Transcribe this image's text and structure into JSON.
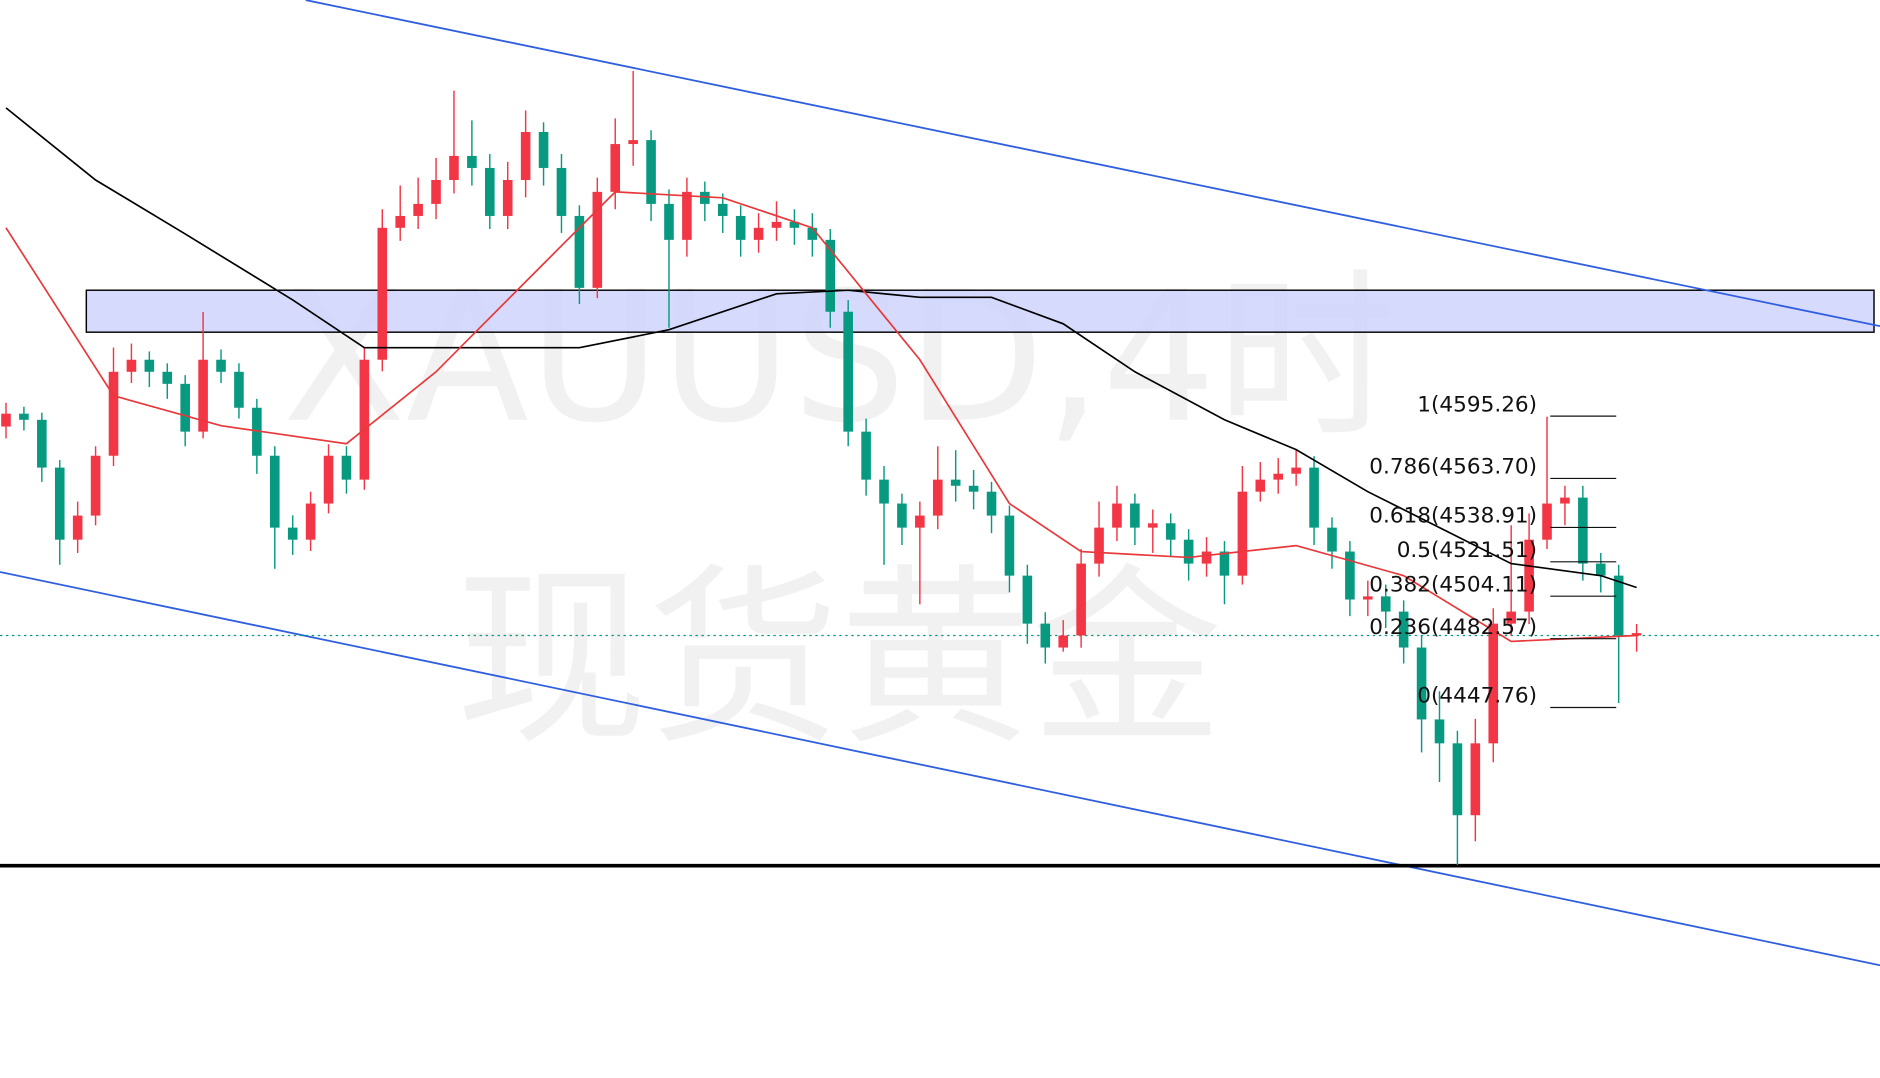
{
  "chart_data": {
    "type": "candlestick",
    "watermark": "XAUUSD,4时",
    "watermark_sub": "现货黄金",
    "ylim": [
      4260.2,
      4805.9
    ],
    "candles": {
      "open": [
        4590.0,
        4596.5,
        4593.4,
        4569.2,
        4532.7,
        4544.9,
        4575.2,
        4617.7,
        4623.8,
        4617.7,
        4611.6,
        4587.4,
        4623.8,
        4617.7,
        4599.5,
        4575.2,
        4538.8,
        4532.7,
        4551.0,
        4575.2,
        4563.1,
        4623.8,
        4690.6,
        4696.6,
        4702.7,
        4714.8,
        4727.0,
        4720.9,
        4696.6,
        4714.8,
        4739.1,
        4720.9,
        4696.6,
        4660.2,
        4708.8,
        4733.0,
        4735.0,
        4702.7,
        4684.5,
        4708.8,
        4702.7,
        4696.6,
        4684.5,
        4690.6,
        4693.6,
        4690.6,
        4684.5,
        4648.1,
        4587.4,
        4563.1,
        4551.0,
        4538.8,
        4544.9,
        4563.1,
        4560.0,
        4557.0,
        4544.9,
        4514.5,
        4490.2,
        4478.1,
        4484.2,
        4520.6,
        4538.8,
        4551.0,
        4538.8,
        4541.0,
        4532.7,
        4520.6,
        4526.7,
        4514.5,
        4557.0,
        4563.1,
        4566.1,
        4569.2,
        4538.8,
        4526.7,
        4502.4,
        4504.0,
        4496.3,
        4478.1,
        4441.7,
        4429.6,
        4393.2,
        4429.6,
        4490.2,
        4496.3,
        4532.7,
        4551.0,
        4554.0,
        4520.6,
        4514.5,
        4484.2
      ],
      "high": [
        4602,
        4600,
        4597,
        4573,
        4552,
        4580,
        4630,
        4632,
        4628,
        4622,
        4616,
        4648,
        4629,
        4622,
        4604,
        4580,
        4545,
        4557,
        4581,
        4580,
        4630,
        4700,
        4712,
        4716,
        4726,
        4760,
        4745,
        4728,
        4724,
        4750,
        4744,
        4728,
        4702,
        4716,
        4746,
        4770,
        4740,
        4710,
        4716,
        4714,
        4708,
        4702,
        4698,
        4704,
        4700,
        4698,
        4690,
        4654,
        4594,
        4570,
        4556,
        4552,
        4580,
        4578,
        4568,
        4562,
        4550,
        4520,
        4496,
        4492,
        4528,
        4552,
        4560,
        4556,
        4548,
        4546,
        4538,
        4534,
        4532,
        4570,
        4572,
        4574,
        4578,
        4575,
        4544,
        4532,
        4512,
        4510,
        4502,
        4484,
        4456,
        4436,
        4442,
        4498,
        4540,
        4546,
        4595,
        4560,
        4560,
        4526,
        4520,
        4490
      ],
      "low": [
        4584,
        4588,
        4562,
        4520,
        4526,
        4540,
        4570,
        4612,
        4610,
        4604,
        4580,
        4584,
        4612,
        4594,
        4566,
        4518,
        4525,
        4527,
        4546,
        4556,
        4558,
        4618,
        4684,
        4690,
        4695,
        4708,
        4712,
        4690,
        4690,
        4706,
        4712,
        4688,
        4652,
        4655,
        4700,
        4722,
        4694,
        4640,
        4676,
        4694,
        4688,
        4676,
        4678,
        4684,
        4682,
        4676,
        4640,
        4580,
        4555,
        4520,
        4530,
        4500,
        4538,
        4552,
        4548,
        4536,
        4506,
        4480,
        4470,
        4476,
        4478,
        4514,
        4532,
        4530,
        4526,
        4524,
        4512,
        4514,
        4500,
        4510,
        4552,
        4556,
        4560,
        4530,
        4518,
        4494,
        4494,
        4488,
        4470,
        4425,
        4410,
        4368,
        4380,
        4420,
        4484,
        4490,
        4528,
        4540,
        4512,
        4506,
        4450,
        4476
      ],
      "close": [
        4596.5,
        4593.4,
        4569.2,
        4532.7,
        4544.9,
        4575.2,
        4617.7,
        4623.8,
        4617.7,
        4611.6,
        4587.4,
        4623.8,
        4617.7,
        4599.5,
        4575.2,
        4538.8,
        4532.7,
        4551.0,
        4575.2,
        4563.1,
        4623.8,
        4690.6,
        4696.6,
        4702.7,
        4714.8,
        4727.0,
        4720.9,
        4696.6,
        4714.8,
        4739.1,
        4720.9,
        4696.6,
        4660.2,
        4708.8,
        4733.0,
        4735.0,
        4702.7,
        4684.5,
        4708.8,
        4702.7,
        4696.6,
        4684.5,
        4690.6,
        4693.6,
        4690.6,
        4684.5,
        4648.1,
        4587.4,
        4563.1,
        4551.0,
        4538.8,
        4544.9,
        4563.1,
        4560.0,
        4557.0,
        4544.9,
        4514.5,
        4490.2,
        4478.1,
        4484.2,
        4520.6,
        4538.8,
        4551.0,
        4538.8,
        4541.0,
        4532.7,
        4520.6,
        4526.7,
        4514.5,
        4557.0,
        4563.1,
        4566.1,
        4569.2,
        4538.8,
        4526.7,
        4502.4,
        4504.0,
        4496.3,
        4478.1,
        4441.7,
        4429.6,
        4393.2,
        4429.6,
        4490.2,
        4496.3,
        4532.7,
        4551.0,
        4554.0,
        4520.6,
        4514.5,
        4484.2,
        4485.4
      ],
      "up_color": "#f23645",
      "down_color": "#089981"
    },
    "lines": [
      {
        "color": "#000000",
        "x": [
          0,
          5,
          10,
          16,
          20,
          26,
          32,
          37,
          43,
          47,
          51,
          55,
          59,
          63,
          68,
          72,
          76,
          80,
          84,
          89,
          91
        ],
        "values": [
          4751.3,
          4714.8,
          4687.5,
          4654.1,
          4629.9,
          4629.9,
          4629.9,
          4639.0,
          4657.2,
          4659.0,
          4655.4,
          4655.4,
          4642.0,
          4617.7,
          4593.4,
          4578.3,
          4557.0,
          4538.8,
          4520.6,
          4514.5,
          4508.5
        ]
      },
      {
        "color": "#e8383a",
        "x": [
          0,
          6,
          12,
          19,
          24,
          30,
          34,
          40,
          45,
          51,
          56,
          60,
          66,
          72,
          78,
          84,
          91
        ],
        "values": [
          4690.6,
          4605.6,
          4590.4,
          4581.3,
          4617.7,
          4672.4,
          4708.8,
          4705.8,
          4690.6,
          4623.8,
          4551.0,
          4526.7,
          4523.7,
          4529.7,
          4514.5,
          4481.2,
          4484.2
        ]
      }
    ],
    "fib": [
      {
        "label": "1(4595.26)",
        "value": 4595.26
      },
      {
        "label": "0.786(4563.70)",
        "value": 4563.7
      },
      {
        "label": "0.618(4538.91)",
        "value": 4538.91
      },
      {
        "label": "0.5(4521.51)",
        "value": 4521.51
      },
      {
        "label": "0.382(4504.11)",
        "value": 4504.11
      },
      {
        "label": "0.236(4482.57)",
        "value": 4482.57
      },
      {
        "label": "0(4447.76)",
        "value": 4447.76
      }
    ]
  }
}
